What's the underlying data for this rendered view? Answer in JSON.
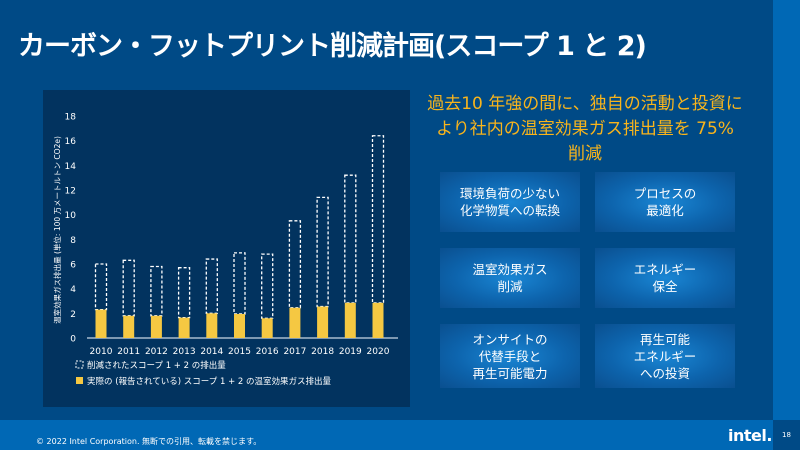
{
  "title": "カーボン・フットプリント削減計画(スコープ 1 と 2)",
  "headline": "過去10 年強の間に、独自の活動と投資により社内の温室効果ガス排出量を 75% 削減",
  "cards": [
    "環境負荷の少ない\n化学物質への転換",
    "プロセスの\n最適化",
    "温室効果ガス\n削減",
    "エネルギー\n保全",
    "オンサイトの\n代替手段と\n再生可能電力",
    "再生可能\nエネルギー\nへの投資"
  ],
  "footer": {
    "copyright": "© 2022 Intel Corporation. 無断での引用、転載を禁じます。",
    "logo": "intel.",
    "page": "18"
  },
  "colors": {
    "background": "#004a86",
    "accent": "#0068b5",
    "panel": "#02335f",
    "actual": "#f5c842",
    "headline": "#f8b41c"
  },
  "chart_data": {
    "type": "bar",
    "stacked": true,
    "categories": [
      "2010",
      "2011",
      "2012",
      "2013",
      "2014",
      "2015",
      "2016",
      "2017",
      "2018",
      "2019",
      "2020"
    ],
    "ylabel": "温室効果ガス排出量 (単位: 100 万メートルトン CO2e)",
    "ylim": [
      0,
      18
    ],
    "yticks": [
      "0",
      "2",
      "4",
      "6",
      "8",
      "10",
      "12",
      "14",
      "16",
      "18"
    ],
    "grid": false,
    "legend_position": "bottom",
    "series": [
      {
        "name": "実際の (報告されている) スコープ 1 + 2 の温室効果ガス排出量",
        "style": "solid-yellow",
        "values": [
          2.3,
          1.8,
          1.8,
          1.65,
          2.0,
          1.95,
          1.6,
          2.45,
          2.55,
          2.85,
          2.85
        ]
      },
      {
        "name": "削減されたスコープ 1 + 2 の排出量",
        "style": "dashed-outline",
        "total_values": [
          6.0,
          6.3,
          5.8,
          5.7,
          6.4,
          6.9,
          6.8,
          9.5,
          11.4,
          13.2,
          16.4
        ]
      }
    ]
  }
}
